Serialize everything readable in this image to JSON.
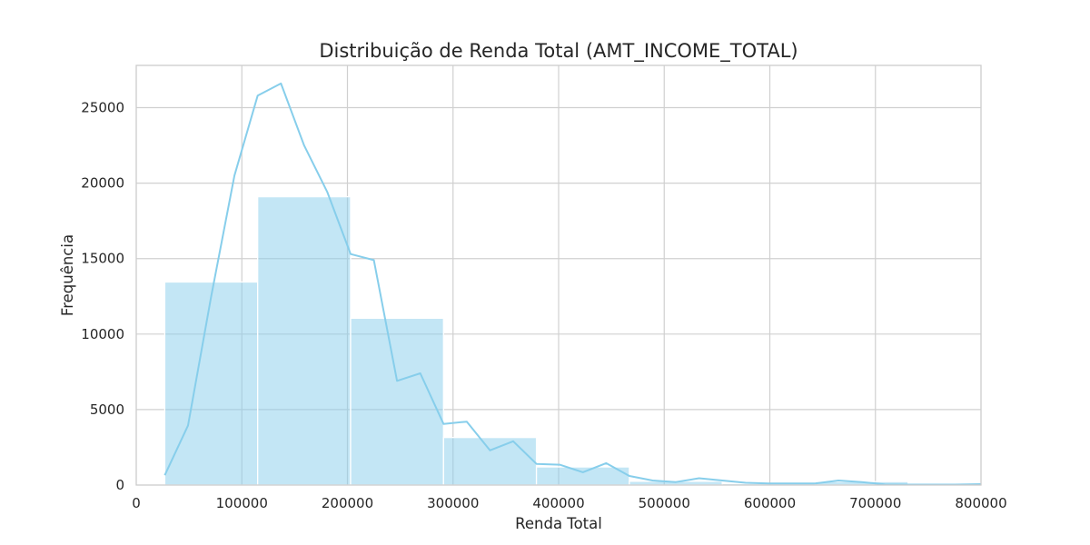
{
  "chart_data": {
    "type": "bar",
    "title": "Distribuição de Renda Total (AMT_INCOME_TOTAL)",
    "xlabel": "Renda Total",
    "ylabel": "Frequência",
    "xlim": [
      0,
      800000
    ],
    "ylim": [
      0,
      27800
    ],
    "x_ticks": [
      0,
      100000,
      200000,
      300000,
      400000,
      500000,
      600000,
      700000,
      800000
    ],
    "x_tick_labels": [
      "0",
      "100000",
      "200000",
      "300000",
      "400000",
      "500000",
      "600000",
      "700000",
      "800000"
    ],
    "y_ticks": [
      0,
      5000,
      10000,
      15000,
      20000,
      25000
    ],
    "y_tick_labels": [
      "0",
      "5000",
      "10000",
      "15000",
      "20000",
      "25000"
    ],
    "grid": true,
    "bar_color": "#87ceeb",
    "bar_opacity": 0.5,
    "line_color": "#87ceeb",
    "bins": [
      {
        "x0": 27000,
        "x1": 115000,
        "count": 13450
      },
      {
        "x0": 115000,
        "x1": 203000,
        "count": 19100
      },
      {
        "x0": 203000,
        "x1": 291000,
        "count": 11050
      },
      {
        "x0": 291000,
        "x1": 379000,
        "count": 3150
      },
      {
        "x0": 379000,
        "x1": 467000,
        "count": 1200
      },
      {
        "x0": 467000,
        "x1": 555000,
        "count": 250
      },
      {
        "x0": 555000,
        "x1": 643000,
        "count": 100
      },
      {
        "x0": 643000,
        "x1": 731000,
        "count": 230
      },
      {
        "x0": 731000,
        "x1": 800000,
        "count": 40
      }
    ],
    "kde_line": {
      "x": [
        27000,
        49000,
        71000,
        93000,
        115000,
        137000,
        159000,
        181000,
        203000,
        225000,
        247000,
        269000,
        291000,
        313000,
        335000,
        357000,
        379000,
        401000,
        423000,
        445000,
        467000,
        489000,
        511000,
        533000,
        555000,
        577000,
        599000,
        621000,
        643000,
        665000,
        687000,
        709000,
        731000,
        753000,
        775000,
        800000
      ],
      "y": [
        650,
        3950,
        12500,
        20500,
        25800,
        26600,
        22500,
        19400,
        15300,
        14900,
        6900,
        7400,
        4050,
        4200,
        2300,
        2900,
        1400,
        1350,
        850,
        1450,
        600,
        300,
        200,
        450,
        300,
        150,
        100,
        100,
        100,
        300,
        200,
        50,
        30,
        30,
        30,
        60
      ]
    }
  }
}
